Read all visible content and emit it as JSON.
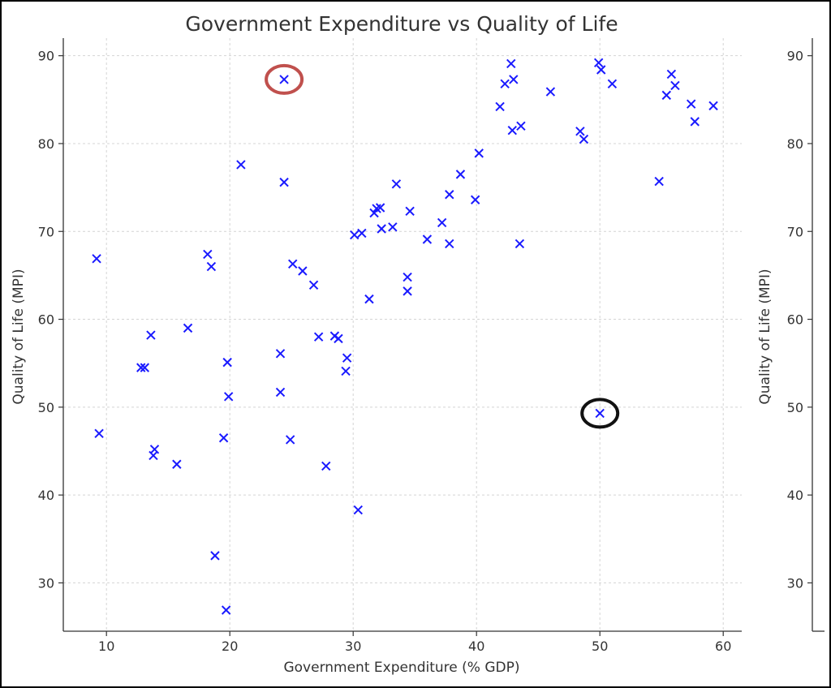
{
  "chart_data": {
    "type": "scatter",
    "title": "Government Expenditure vs Quality of Life",
    "xlabel": "Government Expenditure (% GDP)",
    "ylabel": "Quality of Life (MPI)",
    "xlim": [
      6.5,
      61.5
    ],
    "ylim": [
      24.5,
      92
    ],
    "x_ticks": [
      10,
      20,
      30,
      40,
      50,
      60
    ],
    "y_ticks": [
      30,
      40,
      50,
      60,
      70,
      80,
      90
    ],
    "grid": true,
    "marker": "x",
    "marker_color": "#1a1aff",
    "series": [
      {
        "points": [
          [
            9.2,
            66.9
          ],
          [
            9.4,
            47.0
          ],
          [
            12.8,
            54.5
          ],
          [
            13.1,
            54.5
          ],
          [
            13.6,
            58.2
          ],
          [
            13.8,
            44.5
          ],
          [
            13.9,
            45.2
          ],
          [
            15.7,
            43.5
          ],
          [
            16.6,
            59.0
          ],
          [
            18.2,
            67.4
          ],
          [
            18.5,
            66.0
          ],
          [
            18.8,
            33.1
          ],
          [
            19.5,
            46.5
          ],
          [
            19.7,
            26.9
          ],
          [
            19.8,
            55.1
          ],
          [
            19.9,
            51.2
          ],
          [
            20.9,
            77.6
          ],
          [
            24.1,
            56.1
          ],
          [
            24.1,
            51.7
          ],
          [
            24.4,
            87.3
          ],
          [
            24.4,
            75.6
          ],
          [
            24.9,
            46.3
          ],
          [
            25.1,
            66.3
          ],
          [
            25.9,
            65.5
          ],
          [
            26.8,
            63.9
          ],
          [
            27.2,
            58.0
          ],
          [
            27.8,
            43.3
          ],
          [
            28.5,
            58.1
          ],
          [
            28.8,
            57.8
          ],
          [
            29.4,
            54.1
          ],
          [
            29.5,
            55.6
          ],
          [
            30.1,
            69.6
          ],
          [
            30.4,
            38.3
          ],
          [
            30.7,
            69.8
          ],
          [
            31.3,
            62.3
          ],
          [
            31.7,
            72.1
          ],
          [
            31.9,
            72.6
          ],
          [
            32.2,
            72.7
          ],
          [
            32.3,
            70.3
          ],
          [
            33.2,
            70.5
          ],
          [
            33.5,
            75.4
          ],
          [
            34.4,
            64.8
          ],
          [
            34.4,
            63.2
          ],
          [
            34.6,
            72.3
          ],
          [
            36.0,
            69.1
          ],
          [
            37.2,
            71.0
          ],
          [
            37.8,
            68.6
          ],
          [
            37.8,
            74.2
          ],
          [
            38.7,
            76.5
          ],
          [
            39.9,
            73.6
          ],
          [
            40.2,
            78.9
          ],
          [
            41.9,
            84.2
          ],
          [
            42.3,
            86.8
          ],
          [
            42.8,
            89.1
          ],
          [
            42.9,
            81.5
          ],
          [
            43.0,
            87.3
          ],
          [
            43.5,
            68.6
          ],
          [
            43.6,
            82.0
          ],
          [
            46.0,
            85.9
          ],
          [
            48.4,
            81.4
          ],
          [
            48.7,
            80.5
          ],
          [
            49.9,
            89.2
          ],
          [
            50.0,
            49.3
          ],
          [
            50.1,
            88.4
          ],
          [
            51.0,
            86.8
          ],
          [
            54.8,
            75.7
          ],
          [
            55.4,
            85.5
          ],
          [
            55.8,
            87.9
          ],
          [
            56.1,
            86.6
          ],
          [
            57.4,
            84.5
          ],
          [
            57.7,
            82.5
          ],
          [
            59.2,
            84.3
          ]
        ]
      }
    ],
    "highlight_circles": [
      {
        "point": [
          24.4,
          87.3
        ],
        "color": "#c0504d"
      },
      {
        "point": [
          50.0,
          49.3
        ],
        "color": "#111111"
      }
    ],
    "secondary_y_axis": {
      "label": "Quality of Life (MPI)",
      "ylim": [
        24.5,
        92
      ],
      "ticks": [
        30,
        40,
        50,
        60,
        70,
        80,
        90
      ]
    }
  }
}
